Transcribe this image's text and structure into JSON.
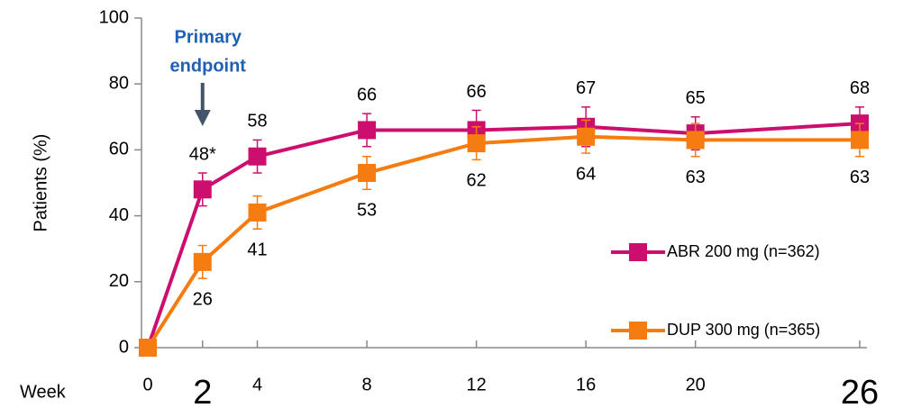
{
  "chart_data": {
    "type": "line",
    "ylabel": "Patients (%)",
    "xlabel": "Week",
    "annotation": [
      "Primary",
      "endpoint"
    ],
    "annotation_x": 2,
    "x": [
      0,
      2,
      4,
      8,
      12,
      16,
      20,
      26
    ],
    "xlim": [
      0,
      26
    ],
    "xticks": [
      0,
      2,
      4,
      8,
      12,
      16,
      20,
      26
    ],
    "xticks_large": [
      2,
      26
    ],
    "ylim": [
      0,
      100
    ],
    "yticks": [
      0,
      20,
      40,
      60,
      80,
      100
    ],
    "grid": false,
    "legend": "lower right",
    "series": [
      {
        "name": "ABR 200 mg (n=362)",
        "color": "#cc0f6e",
        "values": [
          0,
          48,
          58,
          66,
          66,
          67,
          65,
          68
        ],
        "errors": [
          0,
          5,
          5,
          5,
          6,
          6,
          5,
          5
        ],
        "value_labels": [
          null,
          "48*",
          "58",
          "66",
          "66",
          "67",
          "65",
          "68"
        ],
        "label_position": "above"
      },
      {
        "name": "DUP 300 mg (n=365)",
        "color": "#f47c10",
        "values": [
          0,
          26,
          41,
          53,
          62,
          64,
          63,
          63
        ],
        "errors": [
          0,
          5,
          5,
          5,
          5,
          5,
          5,
          5
        ],
        "value_labels": [
          null,
          "26",
          "41",
          "53",
          "62",
          "64",
          "63",
          "63"
        ],
        "label_position": "below"
      }
    ]
  }
}
